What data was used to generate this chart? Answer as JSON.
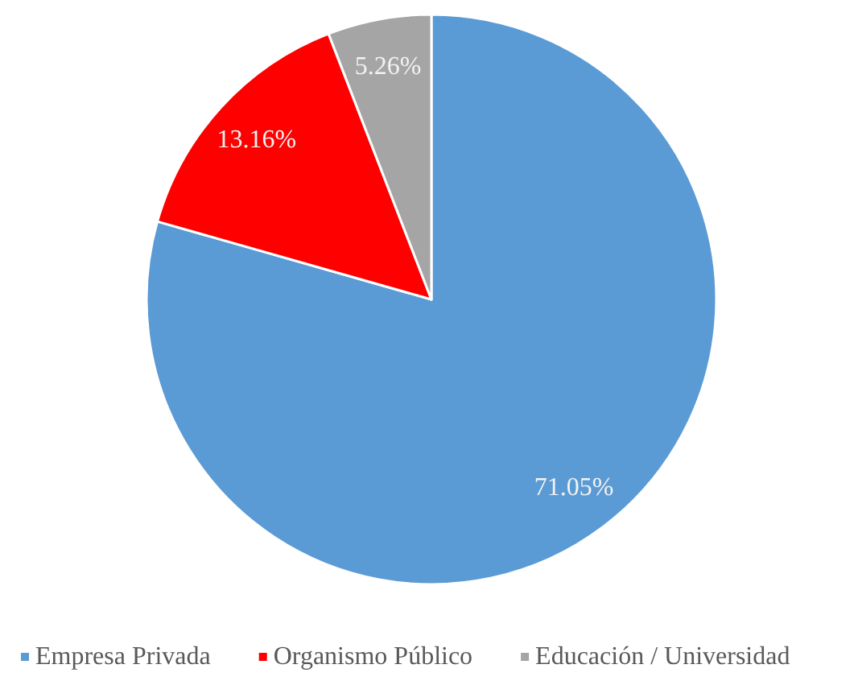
{
  "chart_data": {
    "type": "pie",
    "categories": [
      "Empresa Privada",
      "Organismo Público",
      "Educación / Universidad"
    ],
    "values": [
      71.05,
      13.16,
      5.26
    ],
    "colors": [
      "#5b9bd5",
      "#ff0000",
      "#a5a5a5"
    ],
    "value_labels": [
      "71.05%",
      "13.16%",
      "5.26%"
    ],
    "legend": "bottom"
  }
}
